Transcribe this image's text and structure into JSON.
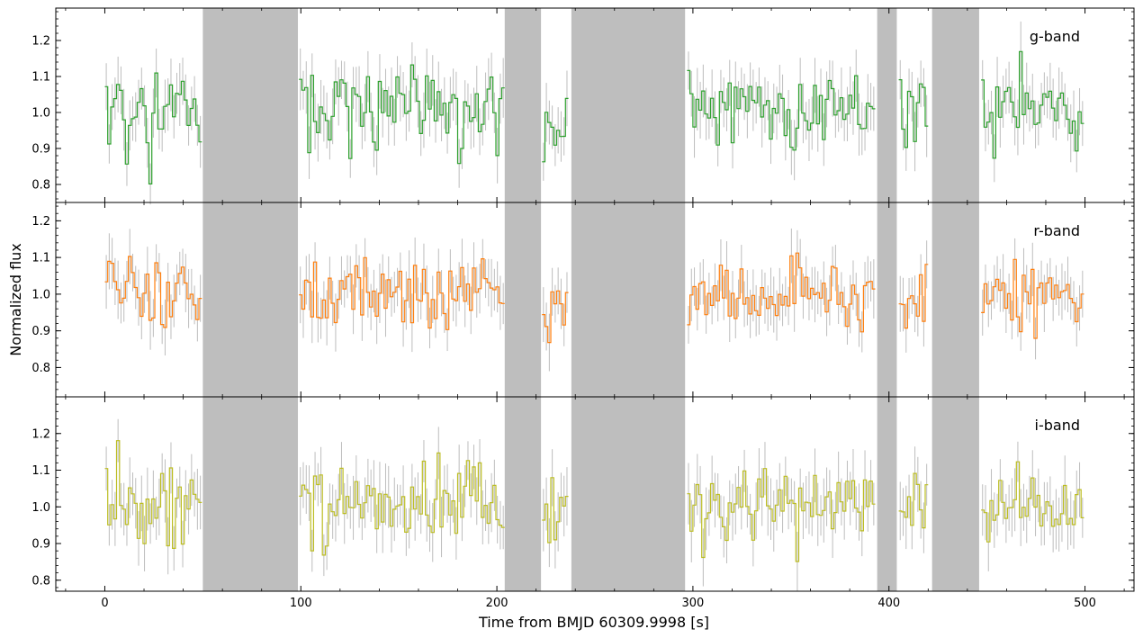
{
  "figure": {
    "xlabel": "Time from BMJD 60309.9998 [s]",
    "ylabel": "Normalized flux"
  },
  "colors": {
    "g": "#2ca02c",
    "r": "#ff7f0e",
    "i": "#bcbd22",
    "errorbar": "#bdbdbd",
    "gap": "#bebebe",
    "axis": "#000000"
  },
  "chart_data": [
    {
      "type": "line",
      "style": "step with error bars",
      "label": "g-band",
      "xlim": [
        -25,
        525
      ],
      "ylim": [
        0.75,
        1.29
      ],
      "yticks": [
        0.8,
        0.9,
        1.0,
        1.1,
        1.2
      ],
      "ytick_labels": [
        "0.8",
        "0.9",
        "1.0",
        "1.1",
        "1.2"
      ],
      "xticks": [
        0,
        100,
        200,
        300,
        400,
        500
      ],
      "xtick_labels": [],
      "shaded_regions": [
        [
          50,
          98.5
        ],
        [
          204,
          222.5
        ],
        [
          238,
          296
        ],
        [
          394,
          404
        ],
        [
          422,
          446
        ]
      ],
      "segments": [
        [
          0,
          50,
          1.0
        ],
        [
          99,
          204,
          1.02
        ],
        [
          223,
          237,
          0.98
        ],
        [
          297,
          394,
          1.0
        ],
        [
          405,
          421,
          1.0
        ],
        [
          447,
          500,
          0.99
        ]
      ],
      "std": 0.06,
      "err": 0.07
    },
    {
      "type": "line",
      "style": "step with error bars",
      "label": "r-band",
      "xlim": [
        -25,
        525
      ],
      "ylim": [
        0.72,
        1.25
      ],
      "yticks": [
        0.8,
        0.9,
        1.0,
        1.1,
        1.2
      ],
      "ytick_labels": [
        "0.8",
        "0.9",
        "1.0",
        "1.1",
        "1.2"
      ],
      "xticks": [
        0,
        100,
        200,
        300,
        400,
        500
      ],
      "xtick_labels": [],
      "shaded_regions": [
        [
          50,
          98.5
        ],
        [
          204,
          222.5
        ],
        [
          238,
          296
        ],
        [
          394,
          404
        ],
        [
          422,
          446
        ]
      ],
      "segments": [
        [
          0,
          50,
          1.0
        ],
        [
          99,
          204,
          1.0
        ],
        [
          223,
          237,
          0.97
        ],
        [
          297,
          394,
          1.0
        ],
        [
          405,
          421,
          1.0
        ],
        [
          447,
          500,
          1.0
        ]
      ],
      "std": 0.055,
      "err": 0.065
    },
    {
      "type": "line",
      "style": "step with error bars",
      "label": "i-band",
      "xlim": [
        -25,
        525
      ],
      "ylim": [
        0.77,
        1.3
      ],
      "yticks": [
        0.8,
        0.9,
        1.0,
        1.1,
        1.2
      ],
      "ytick_labels": [
        "0.8",
        "0.9",
        "1.0",
        "1.1",
        "1.2"
      ],
      "xticks": [
        0,
        100,
        200,
        300,
        400,
        500
      ],
      "xtick_labels": [
        "0",
        "100",
        "200",
        "300",
        "400",
        "500"
      ],
      "shaded_regions": [
        [
          50,
          98.5
        ],
        [
          204,
          222.5
        ],
        [
          238,
          296
        ],
        [
          394,
          404
        ],
        [
          422,
          446
        ]
      ],
      "segments": [
        [
          0,
          50,
          1.0
        ],
        [
          99,
          204,
          1.01
        ],
        [
          223,
          237,
          0.98
        ],
        [
          297,
          394,
          1.0
        ],
        [
          405,
          421,
          1.0
        ],
        [
          447,
          500,
          1.0
        ]
      ],
      "std": 0.055,
      "err": 0.07
    }
  ]
}
